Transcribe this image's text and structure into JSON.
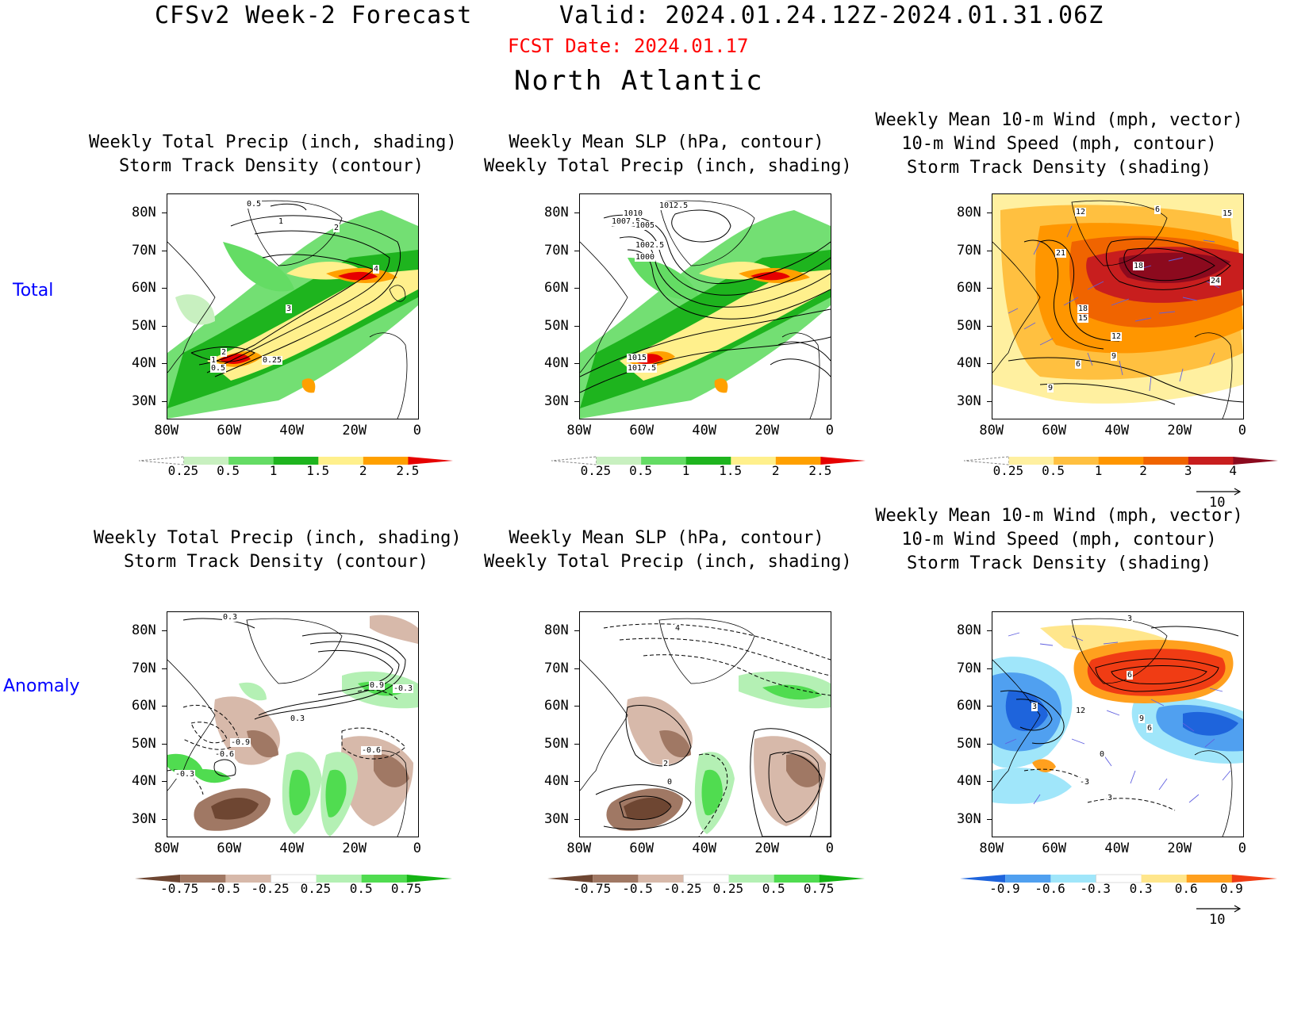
{
  "header": {
    "model": "CFSv2 Week-2 Forecast",
    "valid": "Valid: 2024.01.24.12Z-2024.01.31.06Z",
    "fcst_date": "FCST Date: 2024.01.17",
    "region": "North Atlantic"
  },
  "rows": {
    "total": "Total",
    "anomaly": "Anomaly"
  },
  "panels": {
    "total_precip": {
      "line1": "Weekly Total Precip (inch, shading)",
      "line2": "Storm Track Density (contour)"
    },
    "total_slp": {
      "line1": "Weekly Mean SLP (hPa, contour)",
      "line2": "Weekly Total Precip (inch, shading)"
    },
    "total_wind": {
      "line1": "Weekly Mean 10-m Wind (mph, vector)",
      "line2": "10-m Wind Speed (mph, contour)",
      "line3": "Storm Track Density (shading)"
    },
    "anom_precip": {
      "line1": "Weekly Total Precip (inch, shading)",
      "line2": "Storm Track Density (contour)"
    },
    "anom_slp": {
      "line1": "Weekly Mean SLP (hPa, contour)",
      "line2": "Weekly Total Precip (inch, shading)"
    },
    "anom_wind": {
      "line1": "Weekly Mean 10-m Wind (mph, vector)",
      "line2": "10-m Wind Speed (mph, contour)",
      "line3": "Storm Track Density (shading)"
    }
  },
  "axes": {
    "lat_ticks": [
      "80N",
      "70N",
      "60N",
      "50N",
      "40N",
      "30N"
    ],
    "lon_ticks": [
      "80W",
      "60W",
      "40W",
      "20W",
      "0"
    ]
  },
  "colorbars": {
    "precip_total": {
      "labels": [
        "0.25",
        "0.5",
        "1",
        "1.5",
        "2",
        "2.5"
      ],
      "colors": [
        "#ffffff",
        "#c8f0c0",
        "#64dc64",
        "#1eb41e",
        "#fff08c",
        "#ffa000",
        "#e60000"
      ]
    },
    "std_total": {
      "labels": [
        "0.25",
        "0.5",
        "1",
        "2",
        "3",
        "4"
      ],
      "colors": [
        "#ffffff",
        "#fff0a0",
        "#ffc040",
        "#ff9600",
        "#f06400",
        "#c81e1e",
        "#8c0a1e"
      ]
    },
    "precip_anom": {
      "labels": [
        "-0.75",
        "-0.5",
        "-0.25",
        "0.25",
        "0.5",
        "0.75"
      ],
      "colors": [
        "#6e4632",
        "#a07864",
        "#d7b9aa",
        "#ffffff",
        "#b4f0b4",
        "#50dc50",
        "#14b414"
      ]
    },
    "std_anom": {
      "labels": [
        "-0.9",
        "-0.6",
        "-0.3",
        "0.3",
        "0.6",
        "0.9"
      ],
      "colors": [
        "#1e64dc",
        "#50a0f0",
        "#a0e6fa",
        "#ffffff",
        "#ffe68c",
        "#ffa01e",
        "#f03c14"
      ]
    }
  },
  "vector_ref": "10",
  "contour_labels": {
    "total_precip": [
      "0.5",
      "1",
      "2",
      "4",
      "3",
      "2",
      "1",
      "0.5",
      "0.25"
    ],
    "total_slp": [
      "1012.5",
      "1010",
      "1007.5",
      "1005",
      "1002.5",
      "1000",
      "1015",
      "1017.5"
    ],
    "total_wind": [
      "12",
      "6",
      "15",
      "21",
      "18",
      "24",
      "18",
      "15",
      "12",
      "6",
      "9",
      "9"
    ],
    "anom_precip": [
      "0.3",
      "0.9",
      "-0.3",
      "0.3",
      "-0.9",
      "-0.6",
      "-0.6",
      "-0.3"
    ],
    "anom_slp": [
      "4",
      "2",
      "0"
    ],
    "anom_wind": [
      "3",
      "6",
      "3",
      "12",
      "9",
      "6",
      "0",
      "-3",
      "3"
    ]
  }
}
